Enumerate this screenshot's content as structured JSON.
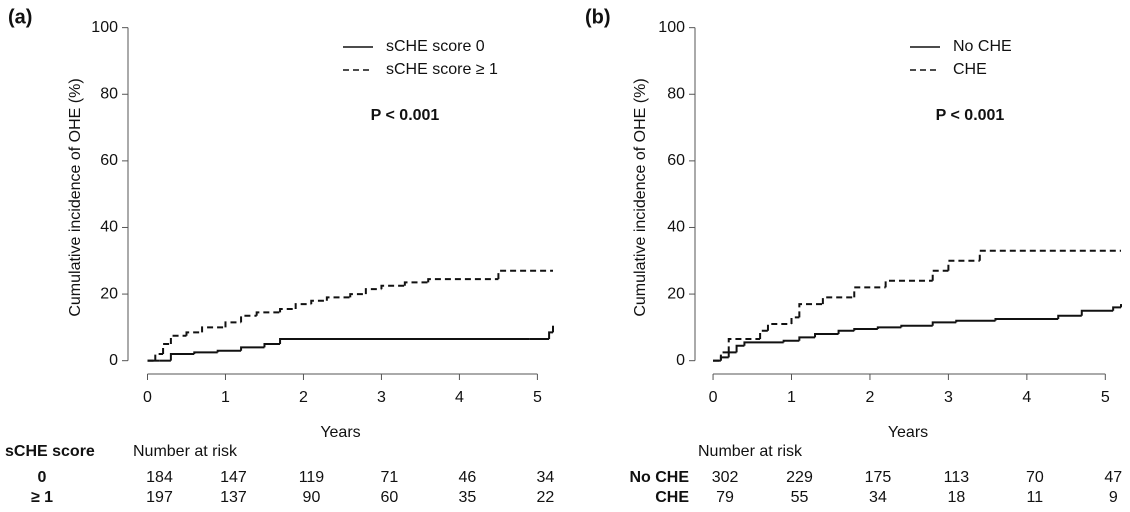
{
  "chart_data": [
    {
      "type": "step",
      "panel_label": "(a)",
      "y_label": "Cumulative incidence of OHE (%)",
      "x_label": "Years",
      "annotation": "P < 0.001",
      "xlim": [
        -0.25,
        5.2
      ],
      "ylim": [
        -4,
        102
      ],
      "xticks": [
        0,
        1,
        2,
        3,
        4,
        5
      ],
      "yticks": [
        0,
        20,
        40,
        60,
        80,
        100
      ],
      "series": [
        {
          "name": "sCHE score 0",
          "color": "#111111",
          "line_style": "solid",
          "x": [
            0,
            0.15,
            0.3,
            0.6,
            0.9,
            1.2,
            1.5,
            1.7,
            4.9,
            5.15,
            5.2
          ],
          "values": [
            0,
            0,
            2,
            2.5,
            3,
            4,
            5,
            6.5,
            6.5,
            8.5,
            10.5
          ]
        },
        {
          "name": "sCHE score ≥ 1",
          "color": "#111111",
          "line_style": "dashed",
          "x": [
            0,
            0.1,
            0.2,
            0.3,
            0.5,
            0.7,
            1.0,
            1.2,
            1.4,
            1.7,
            1.9,
            2.1,
            2.3,
            2.6,
            2.8,
            3.0,
            3.3,
            3.6,
            4.5,
            5.2
          ],
          "values": [
            0,
            2,
            5,
            7.5,
            8.5,
            10,
            11.5,
            13.5,
            14.5,
            15.5,
            17,
            18,
            19,
            20,
            21.5,
            22.5,
            23.5,
            24.5,
            27,
            27
          ]
        }
      ],
      "risk_table": {
        "title": "sCHE score",
        "header": "Number at risk",
        "rows": [
          {
            "label": "0",
            "values": [
              184,
              147,
              119,
              71,
              46,
              34
            ]
          },
          {
            "label": "≥ 1",
            "values": [
              197,
              137,
              90,
              60,
              35,
              22
            ]
          }
        ]
      }
    },
    {
      "type": "step",
      "panel_label": "(b)",
      "y_label": "Cumulative incidence of OHE (%)",
      "x_label": "Years",
      "annotation": "P < 0.001",
      "xlim": [
        -0.23,
        5.2
      ],
      "ylim": [
        -4,
        102
      ],
      "xticks": [
        0,
        1,
        2,
        3,
        4,
        5
      ],
      "yticks": [
        0,
        20,
        40,
        60,
        80,
        100
      ],
      "series": [
        {
          "name": "No CHE",
          "color": "#111111",
          "line_style": "solid",
          "x": [
            0,
            0.1,
            0.2,
            0.3,
            0.4,
            0.9,
            1.1,
            1.3,
            1.6,
            1.8,
            2.1,
            2.4,
            2.8,
            3.1,
            3.6,
            4.4,
            4.7,
            5.1,
            5.2
          ],
          "values": [
            0,
            1,
            2.5,
            4.5,
            5.5,
            6,
            7,
            8,
            9,
            9.5,
            10,
            10.5,
            11.5,
            12,
            12.5,
            13.5,
            15,
            16,
            17
          ]
        },
        {
          "name": "CHE",
          "color": "#111111",
          "line_style": "dashed",
          "x": [
            0,
            0.1,
            0.2,
            0.6,
            0.7,
            1.0,
            1.1,
            1.4,
            1.8,
            2.2,
            2.8,
            3.0,
            3.4,
            5.2
          ],
          "values": [
            0,
            2.5,
            6.5,
            9,
            11,
            13,
            17,
            19,
            22,
            24,
            27,
            30,
            33,
            33
          ]
        }
      ],
      "risk_table": {
        "header": "Number at risk",
        "rows": [
          {
            "label": "No CHE",
            "values": [
              302,
              229,
              175,
              113,
              70,
              47
            ]
          },
          {
            "label": "CHE",
            "values": [
              79,
              55,
              34,
              18,
              11,
              9
            ]
          }
        ]
      }
    }
  ]
}
